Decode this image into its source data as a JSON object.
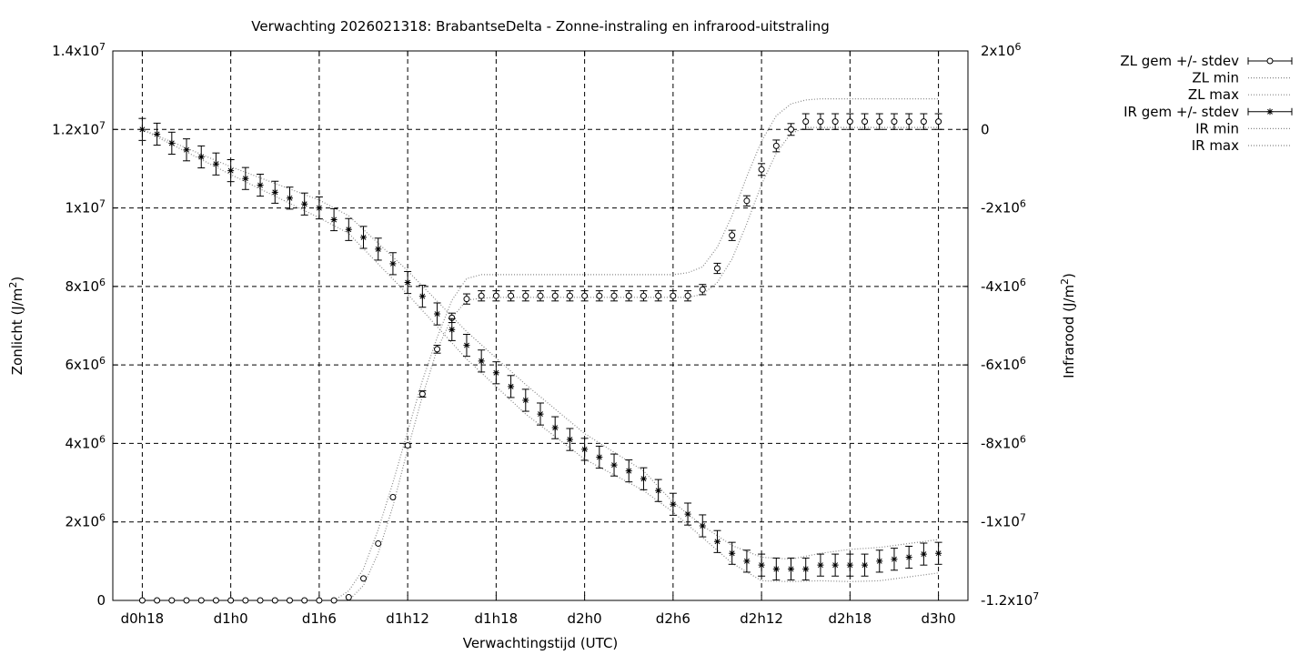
{
  "chart_data": {
    "type": "line",
    "title": "Verwachting 2026021318: BrabantseDelta - Zonne-instraling en infrarood-uitstraling",
    "xlabel": "Verwachtingstijd (UTC)",
    "ylabel_left_base": "Zonlicht (J/m",
    "ylabel_right_base": "Infrarood (J/m",
    "ylabel_sup": "2",
    "ylabel_close": ")",
    "x_ticks": [
      {
        "x": 0,
        "label": "d0h18"
      },
      {
        "x": 6,
        "label": "d1h0"
      },
      {
        "x": 12,
        "label": "d1h6"
      },
      {
        "x": 18,
        "label": "d1h12"
      },
      {
        "x": 24,
        "label": "d1h18"
      },
      {
        "x": 30,
        "label": "d2h0"
      },
      {
        "x": 36,
        "label": "d2h6"
      },
      {
        "x": 42,
        "label": "d2h12"
      },
      {
        "x": 48,
        "label": "d2h18"
      },
      {
        "x": 54,
        "label": "d3h0"
      }
    ],
    "xlim": [
      -2,
      56
    ],
    "y_left": {
      "lim": [
        0,
        14000000
      ],
      "ticks": [
        {
          "v": 0,
          "mant": "0",
          "exp": ""
        },
        {
          "v": 2000000,
          "mant": "2x10",
          "exp": "6"
        },
        {
          "v": 4000000,
          "mant": "4x10",
          "exp": "6"
        },
        {
          "v": 6000000,
          "mant": "6x10",
          "exp": "6"
        },
        {
          "v": 8000000,
          "mant": "8x10",
          "exp": "6"
        },
        {
          "v": 10000000,
          "mant": "1x10",
          "exp": "7"
        },
        {
          "v": 12000000,
          "mant": "1.2x10",
          "exp": "7"
        },
        {
          "v": 14000000,
          "mant": "1.4x10",
          "exp": "7"
        }
      ]
    },
    "y_right": {
      "lim": [
        -12000000,
        2000000
      ],
      "ticks": [
        {
          "v": -12000000,
          "mant": "-1.2x10",
          "exp": "7"
        },
        {
          "v": -10000000,
          "mant": "-1x10",
          "exp": "7"
        },
        {
          "v": -8000000,
          "mant": "-8x10",
          "exp": "6"
        },
        {
          "v": -6000000,
          "mant": "-6x10",
          "exp": "6"
        },
        {
          "v": -4000000,
          "mant": "-4x10",
          "exp": "6"
        },
        {
          "v": -2000000,
          "mant": "-2x10",
          "exp": "6"
        },
        {
          "v": 0,
          "mant": "0",
          "exp": ""
        },
        {
          "v": 2000000,
          "mant": "2x10",
          "exp": "6"
        }
      ]
    },
    "grid": true,
    "legend_position": "top-right, outside plot",
    "series": [
      {
        "name": "ZL gem +/- stdev",
        "axis": "left",
        "marker": "circle",
        "x": [
          0,
          1,
          2,
          3,
          4,
          5,
          6,
          7,
          8,
          9,
          10,
          11,
          12,
          13,
          14,
          15,
          16,
          17,
          18,
          19,
          20,
          21,
          22,
          23,
          24,
          25,
          26,
          27,
          28,
          29,
          30,
          31,
          32,
          33,
          34,
          35,
          36,
          37,
          38,
          39,
          40,
          41,
          42,
          43,
          44,
          45,
          46,
          47,
          48,
          49,
          50,
          51,
          52,
          53,
          54
        ],
        "values": [
          0,
          0,
          0,
          0,
          0,
          0,
          0,
          0,
          0,
          0,
          0,
          0,
          0,
          0,
          80000,
          560000,
          1450000,
          2630000,
          3950000,
          5260000,
          6400000,
          7200000,
          7680000,
          7760000,
          7760000,
          7760000,
          7760000,
          7760000,
          7760000,
          7760000,
          7760000,
          7760000,
          7760000,
          7760000,
          7760000,
          7760000,
          7760000,
          7760000,
          7920000,
          8460000,
          9300000,
          10180000,
          10980000,
          11580000,
          12000000,
          12200000,
          12200000,
          12200000,
          12200000,
          12200000,
          12200000,
          12200000,
          12200000,
          12200000,
          12200000
        ],
        "stdev": [
          0,
          0,
          0,
          0,
          0,
          0,
          0,
          0,
          0,
          0,
          0,
          0,
          0,
          0,
          0,
          0,
          0,
          0,
          50000,
          80000,
          100000,
          120000,
          130000,
          130000,
          130000,
          130000,
          130000,
          130000,
          130000,
          130000,
          130000,
          130000,
          130000,
          130000,
          130000,
          130000,
          130000,
          130000,
          130000,
          130000,
          130000,
          130000,
          150000,
          150000,
          150000,
          200000,
          200000,
          200000,
          200000,
          200000,
          200000,
          200000,
          200000,
          200000,
          200000
        ]
      },
      {
        "name": "ZL min",
        "axis": "left",
        "style": "dotted",
        "x": [
          14,
          15,
          16,
          17,
          18,
          19,
          20,
          21,
          22,
          23,
          24,
          36,
          37,
          38,
          39,
          40,
          41,
          42,
          43,
          44,
          45,
          54
        ],
        "values": [
          0,
          380000,
          1200000,
          2400000,
          3850000,
          5200000,
          6400000,
          7200000,
          7650000,
          7700000,
          7720000,
          7720000,
          7720000,
          7800000,
          8100000,
          8700000,
          9600000,
          10600000,
          11400000,
          11900000,
          12050000,
          12050000
        ]
      },
      {
        "name": "ZL max",
        "axis": "left",
        "style": "dotted",
        "x": [
          13,
          14,
          15,
          16,
          17,
          18,
          19,
          20,
          21,
          22,
          23,
          24,
          36,
          37,
          38,
          39,
          40,
          41,
          42,
          43,
          44,
          45,
          46,
          54
        ],
        "values": [
          0,
          240000,
          800000,
          1800000,
          3000000,
          4300000,
          5600000,
          6700000,
          7650000,
          8200000,
          8300000,
          8300000,
          8300000,
          8350000,
          8500000,
          9000000,
          9800000,
          10800000,
          11700000,
          12350000,
          12650000,
          12750000,
          12780000,
          12780000
        ]
      },
      {
        "name": "IR gem +/- stdev",
        "axis": "right",
        "marker": "star",
        "x": [
          0,
          1,
          2,
          3,
          4,
          5,
          6,
          7,
          8,
          9,
          10,
          11,
          12,
          13,
          14,
          15,
          16,
          17,
          18,
          19,
          20,
          21,
          22,
          23,
          24,
          25,
          26,
          27,
          28,
          29,
          30,
          31,
          32,
          33,
          34,
          35,
          36,
          37,
          38,
          39,
          40,
          41,
          42,
          43,
          44,
          45,
          46,
          47,
          48,
          49,
          50,
          51,
          52,
          53,
          54
        ],
        "values": [
          0,
          -120000,
          -350000,
          -520000,
          -700000,
          -880000,
          -1050000,
          -1250000,
          -1420000,
          -1600000,
          -1750000,
          -1900000,
          -2000000,
          -2300000,
          -2550000,
          -2750000,
          -3050000,
          -3420000,
          -3900000,
          -4250000,
          -4700000,
          -5100000,
          -5500000,
          -5900000,
          -6200000,
          -6550000,
          -6900000,
          -7250000,
          -7600000,
          -7900000,
          -8150000,
          -8350000,
          -8550000,
          -8700000,
          -8900000,
          -9200000,
          -9550000,
          -9800000,
          -10100000,
          -10500000,
          -10800000,
          -11000000,
          -11100000,
          -11200000,
          -11200000,
          -11200000,
          -11100000,
          -11100000,
          -11100000,
          -11100000,
          -11000000,
          -10950000,
          -10900000,
          -10820000,
          -10800000
        ]
      },
      {
        "name": "IR min",
        "axis": "right",
        "style": "dotted",
        "x": [
          0,
          6,
          12,
          14,
          18,
          22,
          26,
          30,
          34,
          36,
          38,
          40,
          42,
          44,
          46,
          48,
          50,
          52,
          54
        ],
        "values": [
          0,
          -1150000,
          -2250000,
          -2650000,
          -4200000,
          -5850000,
          -7250000,
          -8400000,
          -9200000,
          -9750000,
          -10400000,
          -11050000,
          -11500000,
          -11520000,
          -11500000,
          -11520000,
          -11500000,
          -11400000,
          -11300000
        ]
      },
      {
        "name": "IR max",
        "axis": "right",
        "style": "dotted",
        "x": [
          0,
          6,
          12,
          14,
          18,
          22,
          26,
          30,
          34,
          36,
          38,
          40,
          42,
          44,
          46,
          48,
          50,
          52,
          54
        ],
        "values": [
          0,
          -950000,
          -1800000,
          -2200000,
          -3600000,
          -5150000,
          -6500000,
          -7750000,
          -8700000,
          -9500000,
          -10100000,
          -10600000,
          -10900000,
          -10950000,
          -10800000,
          -10700000,
          -10650000,
          -10550000,
          -10450000
        ]
      }
    ]
  }
}
